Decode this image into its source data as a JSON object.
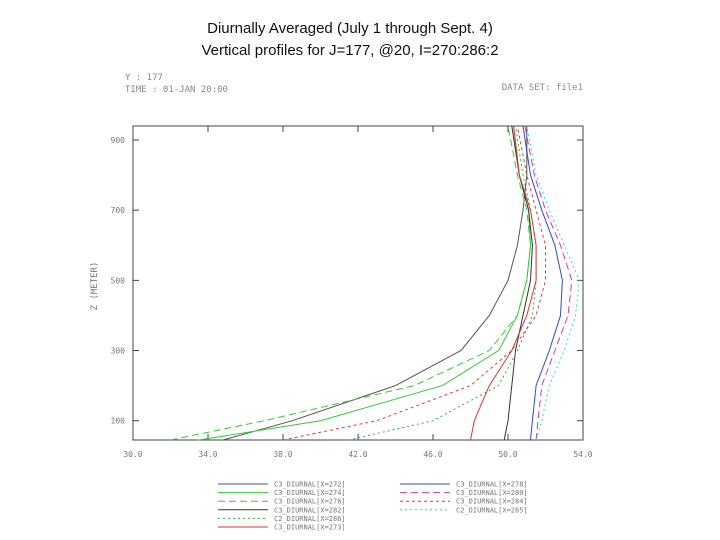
{
  "chart_data": {
    "type": "line",
    "title": "Diurnally Averaged (July 1 through Sept. 4)",
    "subtitle": "Vertical profiles for J=177, @20, I=270:286:2",
    "header_left_1": "Y : 177",
    "header_left_2": "TIME : 01-JAN 20:00",
    "header_right": "DATA SET: file1",
    "ylabel": "Z (METER)",
    "xlim": [
      30,
      54
    ],
    "ylim": [
      45,
      940
    ],
    "xticks": [
      "30.0",
      "34.0",
      "38.0",
      "42.0",
      "46.0",
      "50.0",
      "54.0"
    ],
    "xtick_values": [
      30,
      34,
      38,
      42,
      46,
      50,
      54
    ],
    "yticks": [
      "100",
      "300",
      "500",
      "700",
      "900"
    ],
    "ytick_values": [
      100,
      300,
      500,
      700,
      900
    ],
    "series": [
      {
        "name": "C3_DIURNAL[X=272]",
        "color": "#555555",
        "dash": "",
        "y": [
          45,
          100,
          200,
          300,
          400,
          500,
          600,
          700,
          800,
          940
        ],
        "x": [
          34.8,
          38.5,
          44.0,
          47.5,
          49.0,
          50.0,
          50.5,
          50.8,
          51.0,
          51.0
        ]
      },
      {
        "name": "C3_DIURNAL[X=274]",
        "color": "#33cc33",
        "dash": "",
        "y": [
          45,
          100,
          200,
          300,
          400,
          500,
          600,
          700,
          800,
          940
        ],
        "x": [
          33.5,
          40.0,
          46.5,
          49.5,
          50.5,
          51.0,
          51.2,
          51.1,
          50.6,
          50.3
        ]
      },
      {
        "name": "C3_DIURNAL[X=276]",
        "color": "#33cc33",
        "dash": "7,4",
        "y": [
          45,
          100,
          200,
          300,
          400,
          500,
          600,
          700,
          800,
          940
        ],
        "x": [
          32.0,
          37.0,
          45.0,
          49.0,
          50.5,
          51.0,
          51.2,
          51.0,
          50.5,
          50.0
        ]
      },
      {
        "name": "C3_DIURNAL[X=282]",
        "color": "#333333",
        "dash": "",
        "y": [
          45,
          100,
          200,
          300,
          400,
          500,
          600,
          700,
          800,
          940
        ],
        "x": [
          49.8,
          50.0,
          50.2,
          50.4,
          50.8,
          51.2,
          51.3,
          51.1,
          50.6,
          50.2
        ]
      },
      {
        "name": "C2_DIURNAL[X=286]",
        "color": "#33aa33",
        "dash": "2,3",
        "y": [
          45,
          100,
          200,
          300,
          400,
          500,
          600,
          700,
          800,
          940
        ],
        "x": [
          41.5,
          46.0,
          49.5,
          50.5,
          51.3,
          51.5,
          51.5,
          51.2,
          50.8,
          50.4
        ]
      },
      {
        "name": "C3_DIURNAL[X=273]",
        "color": "#dd3333",
        "dash": "",
        "y": [
          45,
          100,
          200,
          300,
          400,
          500,
          600,
          700,
          800,
          940
        ],
        "x": [
          48.0,
          48.2,
          49.0,
          50.2,
          51.0,
          51.5,
          51.5,
          51.2,
          50.6,
          50.3
        ]
      },
      {
        "name": "C3_DIURNAL[X=278]",
        "color": "#3344dd",
        "dash": "",
        "y": [
          45,
          100,
          200,
          300,
          400,
          500,
          600,
          700,
          800,
          940
        ],
        "x": [
          51.2,
          51.3,
          51.5,
          52.2,
          52.8,
          52.9,
          52.5,
          51.8,
          51.2,
          50.8
        ]
      },
      {
        "name": "C3_DIURNAL[X=280]",
        "color": "#dd33aa",
        "dash": "7,4",
        "y": [
          45,
          100,
          200,
          300,
          400,
          500,
          600,
          700,
          800,
          940
        ],
        "x": [
          51.5,
          51.6,
          51.8,
          52.5,
          53.2,
          53.4,
          52.8,
          52.0,
          51.4,
          50.9
        ]
      },
      {
        "name": "C3_DIURNAL[X=284]",
        "color": "#cc4444",
        "dash": "3,3",
        "y": [
          45,
          100,
          200,
          300,
          400,
          500,
          600,
          700,
          800,
          940
        ],
        "x": [
          38.0,
          43.0,
          48.0,
          50.2,
          51.5,
          52.0,
          52.0,
          51.5,
          51.0,
          50.5
        ]
      },
      {
        "name": "C2_DIURNAL[X=285]",
        "color": "#22dddd",
        "dash": "2,3",
        "y": [
          45,
          100,
          200,
          300,
          400,
          500,
          600,
          700,
          800,
          940
        ],
        "x": [
          51.5,
          51.8,
          52.2,
          53.0,
          53.6,
          53.8,
          53.0,
          52.2,
          51.5,
          51.0
        ]
      }
    ]
  }
}
